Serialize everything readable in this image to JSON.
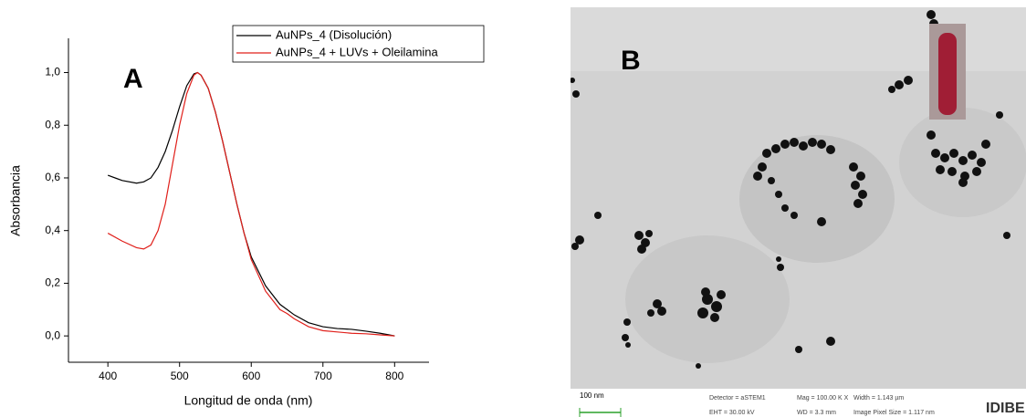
{
  "chart_data": {
    "type": "line",
    "annotation": "A",
    "x_label": "Longitud de onda (nm)",
    "y_label": "Absorbancia",
    "x": [
      400,
      420,
      440,
      450,
      460,
      470,
      480,
      490,
      500,
      510,
      520,
      525,
      530,
      540,
      550,
      560,
      570,
      580,
      590,
      600,
      620,
      640,
      650,
      660,
      680,
      700,
      720,
      740,
      760,
      780,
      800
    ],
    "series": [
      {
        "name": "AuNPs_4 (Disolución)",
        "color": "#000000",
        "values": [
          0.61,
          0.59,
          0.58,
          0.585,
          0.6,
          0.64,
          0.7,
          0.78,
          0.87,
          0.95,
          0.995,
          1.0,
          0.99,
          0.94,
          0.85,
          0.74,
          0.62,
          0.5,
          0.39,
          0.3,
          0.19,
          0.12,
          0.1,
          0.08,
          0.05,
          0.035,
          0.028,
          0.025,
          0.018,
          0.01,
          0.0
        ]
      },
      {
        "name": "AuNPs_4 + LUVs + Oleilamina",
        "color": "#e0201b",
        "values": [
          0.39,
          0.36,
          0.335,
          0.33,
          0.345,
          0.4,
          0.5,
          0.65,
          0.8,
          0.92,
          0.99,
          1.0,
          0.99,
          0.94,
          0.85,
          0.74,
          0.62,
          0.5,
          0.39,
          0.29,
          0.17,
          0.1,
          0.085,
          0.065,
          0.035,
          0.02,
          0.015,
          0.01,
          0.008,
          0.004,
          0.0
        ]
      }
    ],
    "xlim": [
      345,
      848
    ],
    "ylim": [
      -0.1,
      1.13
    ],
    "xticks": [
      400,
      500,
      600,
      700,
      800
    ],
    "yticks": [
      {
        "value": 0.0,
        "label": "0,0"
      },
      {
        "value": 0.2,
        "label": "0,2"
      },
      {
        "value": 0.4,
        "label": "0,4"
      },
      {
        "value": 0.6,
        "label": "0,6"
      },
      {
        "value": 0.8,
        "label": "0,8"
      },
      {
        "value": 1.0,
        "label": "1,0"
      }
    ],
    "legend": "upper right",
    "grid": false
  },
  "image_panel": {
    "label": "B",
    "scale_bar": "100 nm",
    "detector": "Detector = aSTEM1",
    "eht": "EHT = 30.00 kV",
    "mag": "Mag = 100.00 K X",
    "wd": "WD = 3.3 mm",
    "width": "Width = 1.143 µm",
    "pixel": "Image Pixel Size = 1.117 nm",
    "logo": "IDIBE"
  }
}
